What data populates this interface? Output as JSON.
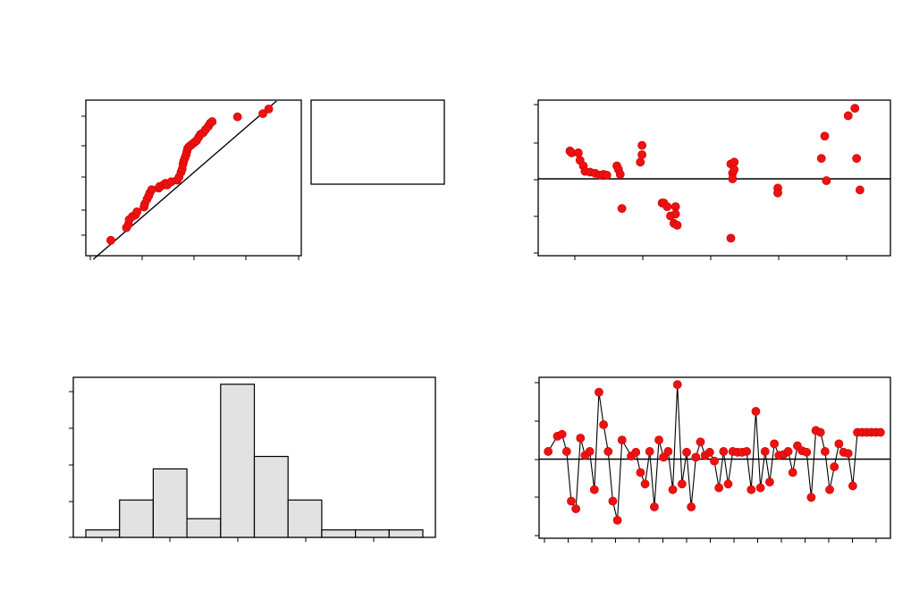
{
  "chart_data": [
    {
      "id": "probability-plot",
      "type": "scatter",
      "title": "",
      "xlabel": "",
      "ylabel": "",
      "xlim": [
        -3,
        3
      ],
      "ylim": [
        0,
        100
      ],
      "grid": false,
      "x": [
        -1.95,
        -1.55,
        -1.5,
        -1.48,
        -1.4,
        -1.32,
        -1.28,
        -1.1,
        -1.08,
        -1.02,
        -0.98,
        -0.95,
        -0.9,
        -0.72,
        -0.7,
        -0.6,
        -0.55,
        -0.5,
        -0.4,
        -0.25,
        -0.2,
        -0.15,
        -0.12,
        -0.1,
        -0.08,
        -0.05,
        -0.02,
        0.0,
        0.02,
        0.05,
        0.1,
        0.15,
        0.2,
        0.25,
        0.3,
        0.35,
        0.42,
        0.48,
        0.55,
        0.6,
        0.65,
        1.3,
        1.95,
        2.1
      ],
      "y": [
        12,
        20,
        22,
        25,
        27,
        28,
        30,
        33,
        35,
        38,
        40,
        42,
        44,
        45,
        46,
        47,
        48,
        47,
        49,
        50,
        52,
        55,
        57,
        60,
        62,
        64,
        66,
        68,
        70,
        71,
        72,
        73,
        74,
        75,
        77,
        79,
        80,
        82,
        84,
        86,
        87,
        90,
        92,
        95
      ],
      "reference_line": {
        "x": [
          -2.4,
          2.3
        ],
        "y": [
          0,
          100
        ]
      }
    },
    {
      "id": "legend-box",
      "type": "table",
      "rows": []
    },
    {
      "id": "residuals-vs-fits",
      "type": "scatter",
      "title": "",
      "xlabel": "",
      "ylabel": "",
      "xlim": [
        0,
        10
      ],
      "ylim": [
        -2,
        2
      ],
      "grid": false,
      "reference_y": 0,
      "x": [
        0.6,
        0.65,
        0.85,
        0.9,
        1.0,
        1.05,
        1.2,
        1.35,
        1.5,
        1.6,
        1.7,
        2.0,
        2.05,
        2.1,
        2.15,
        2.7,
        2.75,
        2.75,
        3.35,
        3.4,
        3.5,
        3.6,
        3.7,
        3.75,
        3.75,
        3.8,
        5.4,
        5.45,
        5.45,
        5.5,
        5.5,
        5.4,
        6.8,
        6.8,
        8.2,
        8.25,
        8.1,
        8.9,
        9.1,
        9.25,
        9.15
      ],
      "y": [
        0.75,
        0.7,
        0.7,
        0.5,
        0.35,
        0.2,
        0.18,
        0.15,
        0.1,
        0.12,
        0.1,
        0.35,
        0.25,
        0.12,
        -0.8,
        0.45,
        0.65,
        0.9,
        -0.65,
        -0.65,
        -0.75,
        -1.0,
        -1.2,
        -0.75,
        -0.95,
        -1.25,
        0.4,
        0.15,
        0.0,
        0.45,
        0.25,
        -1.6,
        -0.25,
        -0.38,
        1.15,
        -0.05,
        0.55,
        1.7,
        1.9,
        -0.3,
        0.55
      ]
    },
    {
      "id": "histogram",
      "type": "bar",
      "title": "",
      "xlabel": "",
      "ylabel": "",
      "ylim": [
        0,
        13
      ],
      "grid": false,
      "bin_edges": [
        -1.4,
        -1.05,
        -0.7,
        -0.35,
        0.0,
        0.35,
        0.7,
        1.05,
        1.4,
        1.75,
        2.1
      ],
      "values": [
        0.6,
        3,
        5.5,
        1.5,
        12.3,
        6.5,
        3,
        0.6,
        0.6,
        0.6
      ]
    },
    {
      "id": "residuals-vs-order",
      "type": "line",
      "title": "",
      "xlabel": "",
      "ylabel": "",
      "xlim": [
        0,
        74
      ],
      "ylim": [
        -2,
        2
      ],
      "grid": false,
      "reference_y": 0,
      "x": [
        1,
        3,
        4,
        5,
        6,
        7,
        8,
        9,
        10,
        11,
        12,
        13,
        14,
        15,
        16,
        17,
        19,
        20,
        21,
        22,
        23,
        24,
        25,
        26,
        27,
        28,
        29,
        30,
        31,
        32,
        33,
        34,
        35,
        36,
        37,
        38,
        39,
        40,
        41,
        42,
        43,
        44,
        45,
        46,
        47,
        48,
        49,
        50,
        51,
        52,
        53,
        54,
        55,
        56,
        57,
        58,
        59,
        60,
        61,
        62,
        63,
        64,
        65,
        66,
        67,
        68,
        69,
        70,
        71,
        72,
        73
      ],
      "y": [
        0.2,
        0.6,
        0.65,
        0.2,
        -1.1,
        -1.3,
        0.55,
        0.1,
        0.2,
        -0.8,
        1.75,
        0.9,
        0.2,
        -1.1,
        -1.6,
        0.5,
        0.08,
        0.18,
        -0.35,
        -0.65,
        0.2,
        -1.25,
        0.5,
        0.05,
        0.2,
        -0.8,
        1.95,
        -0.65,
        0.18,
        -1.25,
        0.05,
        0.45,
        0.1,
        0.18,
        -0.05,
        -0.75,
        0.2,
        -0.65,
        0.2,
        0.18,
        0.18,
        0.2,
        -0.8,
        1.25,
        -0.75,
        0.2,
        -0.6,
        0.4,
        0.1,
        0.12,
        0.2,
        -0.35,
        0.35,
        0.22,
        0.18,
        -1.0,
        0.75,
        0.7,
        0.2,
        -0.8,
        -0.2,
        0.4,
        0.18,
        0.15,
        -0.7,
        0.7,
        0.7,
        0.7,
        0.7,
        0.7,
        0.7
      ]
    }
  ]
}
